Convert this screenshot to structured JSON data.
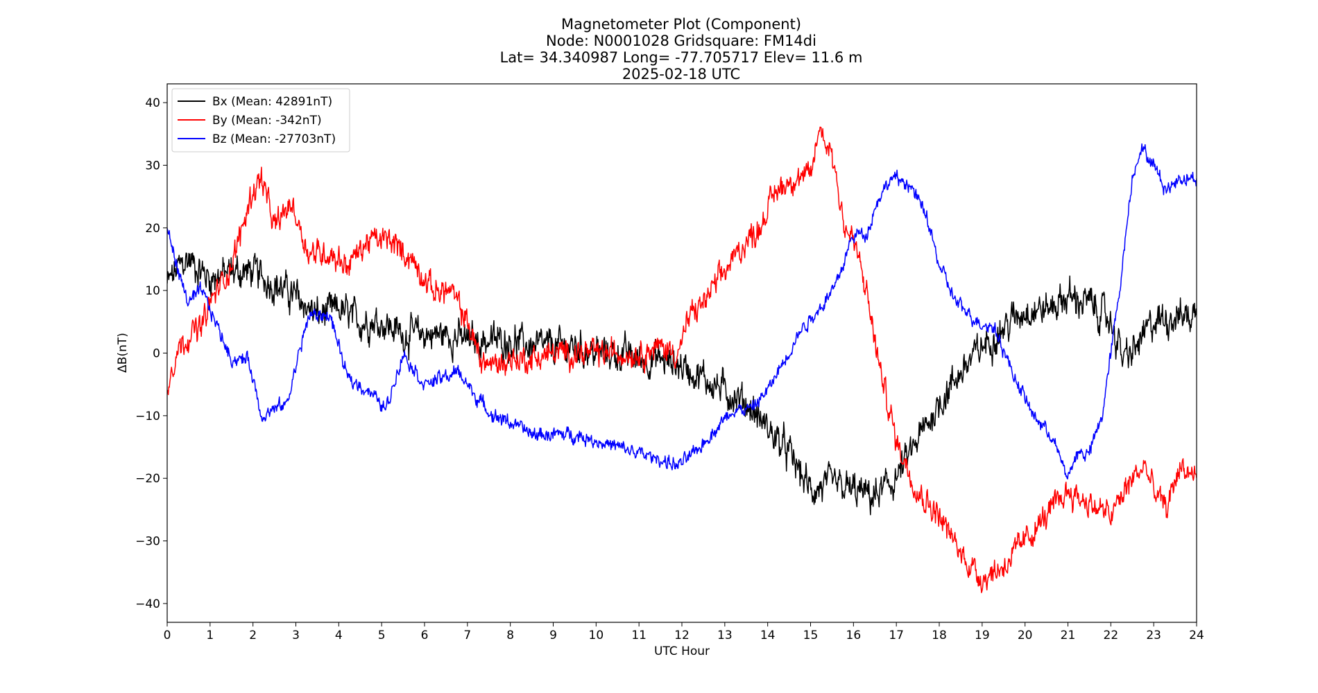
{
  "chart_data": {
    "type": "line",
    "title_lines": [
      "Magnetometer Plot (Component)",
      "Node:  N0001028     Gridsquare:  FM14di",
      "Lat= 34.340987    Long= -77.705717    Elev= 11.6 m",
      "2025-02-18  UTC"
    ],
    "xlabel": "UTC Hour",
    "ylabel": "ΔB(nT)",
    "xlim": [
      0,
      24
    ],
    "ylim": [
      -43,
      43
    ],
    "xticks": [
      0,
      1,
      2,
      3,
      4,
      5,
      6,
      7,
      8,
      9,
      10,
      11,
      12,
      13,
      14,
      15,
      16,
      17,
      18,
      19,
      20,
      21,
      22,
      23,
      24
    ],
    "yticks": [
      -40,
      -30,
      -20,
      -10,
      0,
      10,
      20,
      30,
      40
    ],
    "ytick_labels": [
      "−40",
      "−30",
      "−20",
      "−10",
      "0",
      "10",
      "20",
      "30",
      "40"
    ],
    "grid": false,
    "legend_position": "top-left",
    "series": [
      {
        "name": "Bx (Mean: 42891nT)",
        "color": "#000000",
        "noise": 2.2,
        "x": [
          0,
          0.3,
          0.5,
          0.8,
          1,
          1.5,
          2,
          2.5,
          3,
          3.5,
          4,
          4.5,
          5,
          5.5,
          6,
          6.5,
          7,
          7.5,
          8,
          8.5,
          9,
          9.5,
          10,
          10.5,
          11,
          11.5,
          12,
          12.5,
          13,
          13.5,
          14,
          14.5,
          15,
          15.5,
          16,
          16.5,
          17,
          17.5,
          18,
          18.5,
          19,
          19.5,
          20,
          20.5,
          21,
          21.5,
          22,
          22.3,
          22.5,
          23,
          23.5,
          24
        ],
        "y": [
          11,
          14,
          15,
          13,
          12,
          13,
          13,
          11,
          9,
          6,
          7,
          5,
          5,
          3,
          3,
          3,
          2,
          2,
          2,
          1,
          1,
          1,
          0,
          0,
          -1,
          -1,
          -2,
          -4,
          -6,
          -8,
          -12,
          -16,
          -22,
          -21,
          -22,
          -23,
          -20,
          -14,
          -8,
          -3,
          1,
          4,
          7,
          7,
          9,
          8,
          5,
          -1,
          0,
          5,
          6,
          6
        ]
      },
      {
        "name": "By (Mean: -342nT)",
        "color": "#ff0000",
        "noise": 1.7,
        "x": [
          0,
          0.2,
          0.5,
          0.8,
          1,
          1.5,
          2,
          2.2,
          2.5,
          2.9,
          3.3,
          3.8,
          4.2,
          4.7,
          5.2,
          5.7,
          6.2,
          6.6,
          7,
          7.3,
          7.6,
          8,
          8.5,
          9,
          9.5,
          10,
          10.5,
          11,
          11.5,
          11.9,
          12.2,
          12.5,
          12.8,
          13,
          13.4,
          13.8,
          14.2,
          14.6,
          15,
          15.2,
          15.5,
          15.8,
          16,
          16.3,
          16.6,
          17,
          17.5,
          18,
          18.5,
          19,
          19.5,
          20,
          20.5,
          21,
          21.5,
          22,
          22.5,
          22.8,
          23,
          23.3,
          23.6,
          24
        ],
        "y": [
          -5,
          0,
          3,
          4,
          8,
          14,
          26,
          28,
          20,
          24,
          16,
          16,
          14,
          18,
          18,
          15,
          10,
          10,
          5,
          -1,
          -2,
          -1,
          -1,
          0,
          0,
          0,
          0,
          0,
          1,
          0,
          6,
          8,
          11,
          13,
          17,
          20,
          26,
          28,
          28,
          36,
          32,
          20,
          18,
          10,
          -2,
          -14,
          -22,
          -26,
          -32,
          -36,
          -34,
          -30,
          -26,
          -22,
          -24,
          -26,
          -20,
          -18,
          -22,
          -25,
          -18,
          -20
        ]
      },
      {
        "name": "Bz (Mean: -27703nT)",
        "color": "#0000ff",
        "noise": 0.9,
        "x": [
          0,
          0.3,
          0.5,
          0.8,
          1,
          1.5,
          1.9,
          2.2,
          2.5,
          2.8,
          3,
          3.3,
          3.8,
          4.2,
          4.7,
          5.1,
          5.5,
          6,
          6.4,
          6.8,
          7.2,
          7.6,
          8,
          8.5,
          9,
          9.5,
          10,
          10.5,
          11,
          11.5,
          11.9,
          12.3,
          12.8,
          13.2,
          13.6,
          14,
          14.4,
          14.8,
          15.2,
          15.6,
          16,
          16.3,
          16.6,
          16.9,
          17.3,
          17.7,
          18,
          18.4,
          18.9,
          19.3,
          19.7,
          20.2,
          20.6,
          21,
          21.2,
          21.5,
          21.8,
          22.2,
          22.5,
          22.7,
          23,
          23.3,
          23.6,
          24
        ],
        "y": [
          20,
          12,
          8,
          10,
          7,
          -1,
          -1,
          -10,
          -9,
          -8,
          -2,
          6,
          6,
          -4,
          -6,
          -9,
          0,
          -5,
          -4,
          -3,
          -7,
          -10,
          -11,
          -13,
          -13,
          -13,
          -14,
          -15,
          -16,
          -17,
          -18,
          -16,
          -12,
          -9,
          -9,
          -6,
          -1,
          4,
          7,
          11,
          19,
          19,
          25,
          28,
          27,
          22,
          14,
          8,
          5,
          4,
          -3,
          -10,
          -13,
          -20,
          -16,
          -16,
          -10,
          10,
          28,
          33,
          30,
          26,
          28,
          28
        ]
      }
    ]
  }
}
